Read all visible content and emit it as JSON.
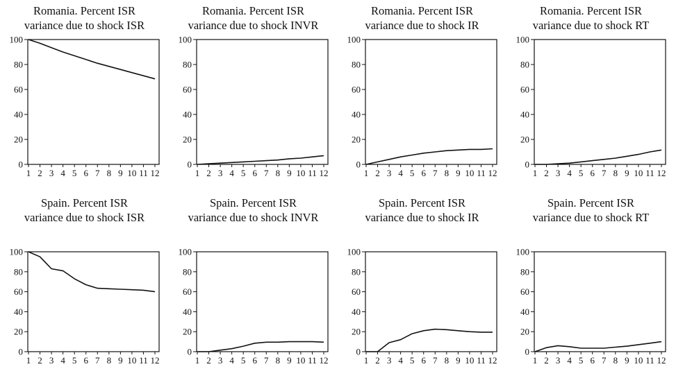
{
  "chart_data": [
    {
      "type": "line",
      "title": "Romania. Percent ISR variance due to shock ISR",
      "title_lines": [
        "Romania. Percent ISR",
        "variance due to shock ISR"
      ],
      "x": [
        1,
        2,
        3,
        4,
        5,
        6,
        7,
        8,
        9,
        10,
        11,
        12
      ],
      "x_ticks": [
        "1",
        "2",
        "3",
        "4",
        "5",
        "6",
        "7",
        "8",
        "9",
        "10",
        "11",
        "12"
      ],
      "y_ticks": [
        "0",
        "20",
        "40",
        "60",
        "80",
        "100"
      ],
      "ylim": [
        0,
        100
      ],
      "series": [
        {
          "values": [
            100,
            97,
            93.5,
            90,
            87,
            84,
            81,
            78.5,
            76,
            73.5,
            71,
            68.5
          ]
        }
      ]
    },
    {
      "type": "line",
      "title": "Romania. Percent ISR variance due to shock INVR",
      "title_lines": [
        "Romania. Percent ISR",
        "variance due to shock INVR"
      ],
      "x": [
        1,
        2,
        3,
        4,
        5,
        6,
        7,
        8,
        9,
        10,
        11,
        12
      ],
      "x_ticks": [
        "1",
        "2",
        "3",
        "4",
        "5",
        "6",
        "7",
        "8",
        "9",
        "10",
        "11",
        "12"
      ],
      "y_ticks": [
        "0",
        "20",
        "40",
        "60",
        "80",
        "100"
      ],
      "ylim": [
        0,
        100
      ],
      "series": [
        {
          "values": [
            0,
            0.5,
            1,
            1.5,
            2,
            2.5,
            3,
            3.5,
            4.5,
            5,
            6,
            7
          ]
        }
      ]
    },
    {
      "type": "line",
      "title": "Romania. Percent ISR variance due to shock IR",
      "title_lines": [
        "Romania. Percent ISR",
        "variance due to shock IR"
      ],
      "x": [
        1,
        2,
        3,
        4,
        5,
        6,
        7,
        8,
        9,
        10,
        11,
        12
      ],
      "x_ticks": [
        "1",
        "2",
        "3",
        "4",
        "5",
        "6",
        "7",
        "8",
        "9",
        "10",
        "11",
        "12"
      ],
      "y_ticks": [
        "0",
        "20",
        "40",
        "60",
        "80",
        "100"
      ],
      "ylim": [
        0,
        100
      ],
      "series": [
        {
          "values": [
            0,
            2,
            4,
            6,
            7.5,
            9,
            10,
            11,
            11.5,
            12,
            12,
            12.5
          ]
        }
      ]
    },
    {
      "type": "line",
      "title": "Romania. Percent ISR variance due to shock RT",
      "title_lines": [
        "Romania. Percent ISR",
        "variance due to shock RT"
      ],
      "x": [
        1,
        2,
        3,
        4,
        5,
        6,
        7,
        8,
        9,
        10,
        11,
        12
      ],
      "x_ticks": [
        "1",
        "2",
        "3",
        "4",
        "5",
        "6",
        "7",
        "8",
        "9",
        "10",
        "11",
        "12"
      ],
      "y_ticks": [
        "0",
        "20",
        "40",
        "60",
        "80",
        "100"
      ],
      "ylim": [
        0,
        100
      ],
      "series": [
        {
          "values": [
            0,
            0,
            0.5,
            1,
            2,
            3,
            4,
            5,
            6.5,
            8,
            10,
            11.5
          ]
        }
      ]
    },
    {
      "type": "line",
      "title": "Spain. Percent ISR variance due to shock ISR",
      "title_lines": [
        "Spain. Percent ISR",
        "variance due to shock ISR"
      ],
      "x": [
        1,
        2,
        3,
        4,
        5,
        6,
        7,
        8,
        9,
        10,
        11,
        12
      ],
      "x_ticks": [
        "1",
        "2",
        "3",
        "4",
        "5",
        "6",
        "7",
        "8",
        "9",
        "10",
        "11",
        "12"
      ],
      "y_ticks": [
        "0",
        "20",
        "40",
        "60",
        "80",
        "100"
      ],
      "ylim": [
        0,
        100
      ],
      "series": [
        {
          "values": [
            100,
            95,
            83,
            81,
            73,
            67,
            63.5,
            63,
            62.5,
            62,
            61.5,
            60
          ]
        }
      ]
    },
    {
      "type": "line",
      "title": "Spain. Percent ISR variance due to shock INVR",
      "title_lines": [
        "Spain. Percent ISR",
        "variance due to shock INVR"
      ],
      "x": [
        1,
        2,
        3,
        4,
        5,
        6,
        7,
        8,
        9,
        10,
        11,
        12
      ],
      "x_ticks": [
        "1",
        "2",
        "3",
        "4",
        "5",
        "6",
        "7",
        "8",
        "9",
        "10",
        "11",
        "12"
      ],
      "y_ticks": [
        "0",
        "20",
        "40",
        "60",
        "80",
        "100"
      ],
      "ylim": [
        0,
        100
      ],
      "series": [
        {
          "values": [
            0,
            0,
            1.5,
            3,
            5.5,
            8.5,
            9.5,
            9.5,
            10,
            10,
            10,
            9.5
          ]
        }
      ]
    },
    {
      "type": "line",
      "title": "Spain. Percent ISR variance due to shock IR",
      "title_lines": [
        "Spain. Percent ISR",
        "variance due to shock IR"
      ],
      "x": [
        1,
        2,
        3,
        4,
        5,
        6,
        7,
        8,
        9,
        10,
        11,
        12
      ],
      "x_ticks": [
        "1",
        "2",
        "3",
        "4",
        "5",
        "6",
        "7",
        "8",
        "9",
        "10",
        "11",
        "12"
      ],
      "y_ticks": [
        "0",
        "20",
        "40",
        "60",
        "80",
        "100"
      ],
      "ylim": [
        0,
        100
      ],
      "series": [
        {
          "values": [
            0,
            0,
            9,
            12,
            18,
            21,
            22.5,
            22,
            21,
            20,
            19.5,
            19.5
          ]
        }
      ]
    },
    {
      "type": "line",
      "title": "Spain. Percent ISR variance due to shock RT",
      "title_lines": [
        "Spain. Percent ISR",
        "variance due to shock RT"
      ],
      "x": [
        1,
        2,
        3,
        4,
        5,
        6,
        7,
        8,
        9,
        10,
        11,
        12
      ],
      "x_ticks": [
        "1",
        "2",
        "3",
        "4",
        "5",
        "6",
        "7",
        "8",
        "9",
        "10",
        "11",
        "12"
      ],
      "y_ticks": [
        "0",
        "20",
        "40",
        "60",
        "80",
        "100"
      ],
      "ylim": [
        0,
        100
      ],
      "series": [
        {
          "values": [
            0,
            4,
            6,
            5,
            3.5,
            3.5,
            3.5,
            4.5,
            5.5,
            7,
            8.5,
            10
          ]
        }
      ]
    }
  ]
}
